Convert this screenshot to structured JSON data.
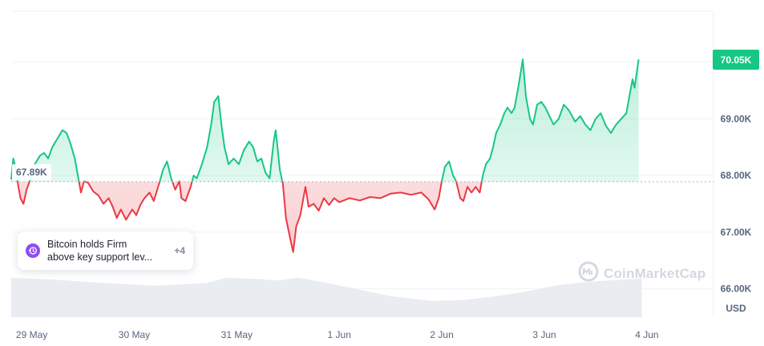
{
  "chart_data": {
    "type": "line",
    "unit_label": "USD",
    "baseline_value": 67890,
    "baseline_label": "67.89K",
    "current_label": "70.05K",
    "y_ticks": [
      {
        "value": 69000,
        "label": "69.00K"
      },
      {
        "value": 68000,
        "label": "68.00K"
      },
      {
        "value": 67000,
        "label": "67.00K"
      },
      {
        "value": 66000,
        "label": "66.00K"
      }
    ],
    "x_ticks": [
      "29 May",
      "30 May",
      "31 May",
      "1 Jun",
      "2 Jun",
      "3 Jun",
      "4 Jun"
    ],
    "ylim": [
      65500,
      70900
    ],
    "x_range_days": [
      -0.1,
      6.75
    ],
    "colors": {
      "above": "#16c784",
      "below": "#ea3943",
      "volume": "#e9ecf1",
      "grid": "#eff2f5"
    },
    "price_points": [
      [
        -0.1,
        67930
      ],
      [
        -0.08,
        68300
      ],
      [
        -0.06,
        68150
      ],
      [
        -0.03,
        67800
      ],
      [
        -0.01,
        67600
      ],
      [
        0.02,
        67500
      ],
      [
        0.05,
        67750
      ],
      [
        0.09,
        67950
      ],
      [
        0.13,
        68200
      ],
      [
        0.18,
        68350
      ],
      [
        0.22,
        68400
      ],
      [
        0.26,
        68300
      ],
      [
        0.3,
        68500
      ],
      [
        0.35,
        68650
      ],
      [
        0.4,
        68800
      ],
      [
        0.44,
        68750
      ],
      [
        0.48,
        68550
      ],
      [
        0.52,
        68300
      ],
      [
        0.55,
        68000
      ],
      [
        0.58,
        67700
      ],
      [
        0.61,
        67900
      ],
      [
        0.65,
        67870
      ],
      [
        0.7,
        67720
      ],
      [
        0.75,
        67650
      ],
      [
        0.8,
        67500
      ],
      [
        0.85,
        67600
      ],
      [
        0.89,
        67450
      ],
      [
        0.93,
        67250
      ],
      [
        0.97,
        67400
      ],
      [
        1.02,
        67220
      ],
      [
        1.08,
        67400
      ],
      [
        1.12,
        67300
      ],
      [
        1.16,
        67480
      ],
      [
        1.2,
        67600
      ],
      [
        1.25,
        67700
      ],
      [
        1.29,
        67550
      ],
      [
        1.35,
        67900
      ],
      [
        1.38,
        68100
      ],
      [
        1.42,
        68250
      ],
      [
        1.46,
        67950
      ],
      [
        1.5,
        67750
      ],
      [
        1.54,
        67900
      ],
      [
        1.56,
        67600
      ],
      [
        1.6,
        67550
      ],
      [
        1.65,
        67800
      ],
      [
        1.68,
        68000
      ],
      [
        1.71,
        67950
      ],
      [
        1.76,
        68200
      ],
      [
        1.81,
        68500
      ],
      [
        1.85,
        68900
      ],
      [
        1.88,
        69300
      ],
      [
        1.92,
        69400
      ],
      [
        1.95,
        68900
      ],
      [
        1.98,
        68500
      ],
      [
        2.02,
        68200
      ],
      [
        2.07,
        68300
      ],
      [
        2.12,
        68200
      ],
      [
        2.17,
        68450
      ],
      [
        2.22,
        68600
      ],
      [
        2.26,
        68500
      ],
      [
        2.3,
        68250
      ],
      [
        2.34,
        68300
      ],
      [
        2.38,
        68050
      ],
      [
        2.42,
        67950
      ],
      [
        2.46,
        68600
      ],
      [
        2.48,
        68800
      ],
      [
        2.52,
        68100
      ],
      [
        2.55,
        67850
      ],
      [
        2.58,
        67250
      ],
      [
        2.62,
        66900
      ],
      [
        2.65,
        66650
      ],
      [
        2.68,
        67100
      ],
      [
        2.72,
        67300
      ],
      [
        2.77,
        67800
      ],
      [
        2.8,
        67450
      ],
      [
        2.85,
        67500
      ],
      [
        2.9,
        67380
      ],
      [
        2.95,
        67600
      ],
      [
        3.0,
        67480
      ],
      [
        3.05,
        67600
      ],
      [
        3.1,
        67530
      ],
      [
        3.2,
        67600
      ],
      [
        3.3,
        67560
      ],
      [
        3.4,
        67620
      ],
      [
        3.5,
        67600
      ],
      [
        3.6,
        67680
      ],
      [
        3.7,
        67700
      ],
      [
        3.8,
        67660
      ],
      [
        3.9,
        67700
      ],
      [
        3.97,
        67580
      ],
      [
        4.03,
        67400
      ],
      [
        4.07,
        67600
      ],
      [
        4.1,
        67900
      ],
      [
        4.13,
        68150
      ],
      [
        4.17,
        68250
      ],
      [
        4.21,
        68000
      ],
      [
        4.24,
        67900
      ],
      [
        4.28,
        67600
      ],
      [
        4.31,
        67550
      ],
      [
        4.35,
        67800
      ],
      [
        4.39,
        67700
      ],
      [
        4.43,
        67800
      ],
      [
        4.47,
        67700
      ],
      [
        4.5,
        68000
      ],
      [
        4.53,
        68200
      ],
      [
        4.57,
        68300
      ],
      [
        4.6,
        68500
      ],
      [
        4.63,
        68750
      ],
      [
        4.67,
        68900
      ],
      [
        4.71,
        69100
      ],
      [
        4.74,
        69200
      ],
      [
        4.78,
        69100
      ],
      [
        4.81,
        69200
      ],
      [
        4.85,
        69600
      ],
      [
        4.89,
        70050
      ],
      [
        4.92,
        69400
      ],
      [
        4.96,
        69000
      ],
      [
        4.99,
        68900
      ],
      [
        5.03,
        69250
      ],
      [
        5.07,
        69300
      ],
      [
        5.11,
        69200
      ],
      [
        5.15,
        69050
      ],
      [
        5.19,
        68900
      ],
      [
        5.24,
        69000
      ],
      [
        5.29,
        69250
      ],
      [
        5.34,
        69150
      ],
      [
        5.4,
        68950
      ],
      [
        5.45,
        69050
      ],
      [
        5.5,
        68900
      ],
      [
        5.55,
        68800
      ],
      [
        5.6,
        69000
      ],
      [
        5.65,
        69100
      ],
      [
        5.7,
        68880
      ],
      [
        5.75,
        68750
      ],
      [
        5.8,
        68900
      ],
      [
        5.85,
        69000
      ],
      [
        5.9,
        69100
      ],
      [
        5.93,
        69400
      ],
      [
        5.96,
        69700
      ],
      [
        5.98,
        69550
      ],
      [
        6.0,
        69800
      ],
      [
        6.02,
        70050
      ]
    ],
    "volume_profile": [
      [
        -0.1,
        0.88
      ],
      [
        0.3,
        0.84
      ],
      [
        0.8,
        0.76
      ],
      [
        1.3,
        0.7
      ],
      [
        1.8,
        0.76
      ],
      [
        2.0,
        0.88
      ],
      [
        2.3,
        0.85
      ],
      [
        2.5,
        0.82
      ],
      [
        2.7,
        0.88
      ],
      [
        2.9,
        0.8
      ],
      [
        3.2,
        0.66
      ],
      [
        3.6,
        0.47
      ],
      [
        4.0,
        0.36
      ],
      [
        4.3,
        0.38
      ],
      [
        4.6,
        0.46
      ],
      [
        4.9,
        0.56
      ],
      [
        5.2,
        0.7
      ],
      [
        5.5,
        0.78
      ],
      [
        5.8,
        0.83
      ],
      [
        6.05,
        0.86
      ]
    ]
  },
  "news": {
    "line1": "Bitcoin holds Firm",
    "line2": "above key support lev...",
    "more_count": "+4"
  },
  "watermark": {
    "brand": "CoinMarketCap"
  }
}
